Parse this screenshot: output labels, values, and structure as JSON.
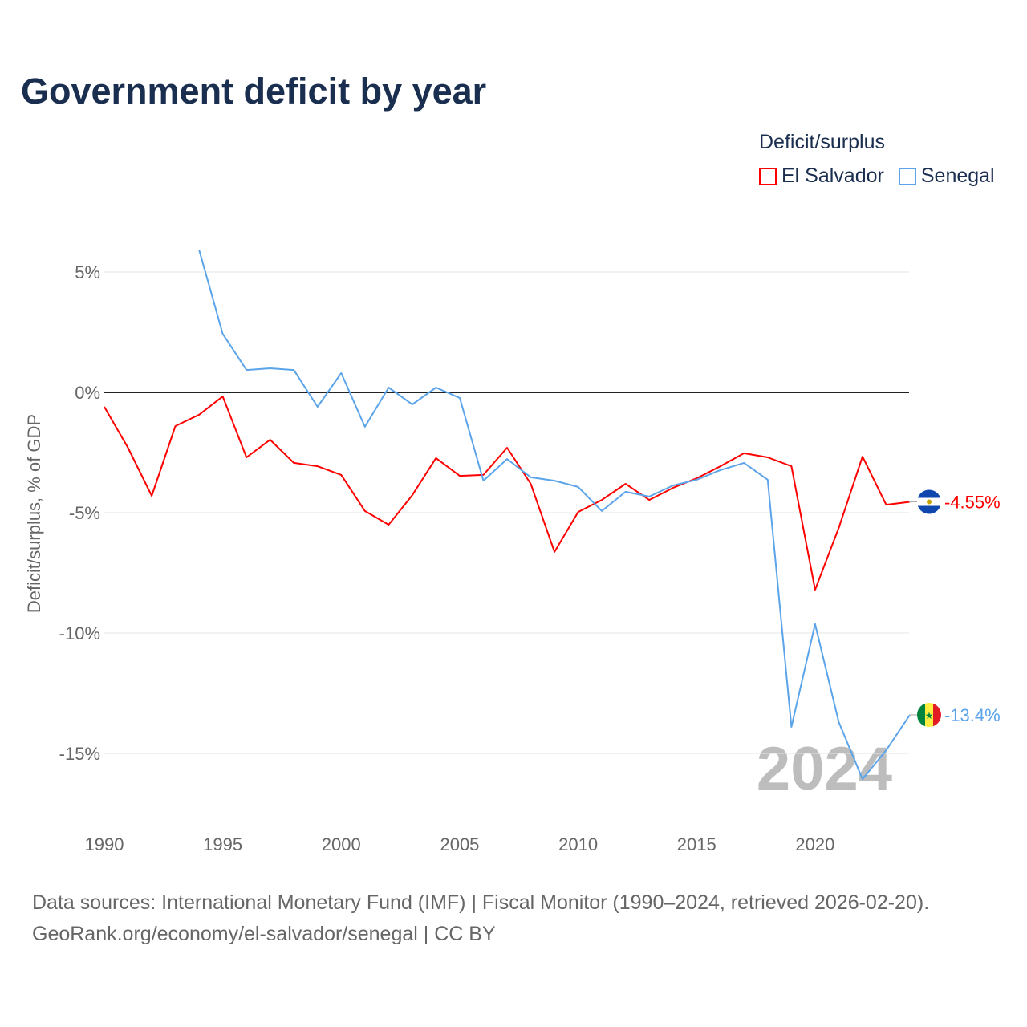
{
  "title": "Government deficit by year",
  "legend": {
    "title": "Deficit/surplus",
    "items": [
      {
        "name": "El Salvador",
        "color": "#ff0000"
      },
      {
        "name": "Senegal",
        "color": "#5ba4ea"
      }
    ]
  },
  "year_watermark": "2024",
  "source": {
    "line1": "Data sources: International Monetary Fund (IMF) | Fiscal Monitor (1990–2024, retrieved 2026-02-20).",
    "line2": "GeoRank.org/economy/el-salvador/senegal | CC BY"
  },
  "chart_data": {
    "type": "line",
    "title": "Government deficit by year",
    "xlabel": "",
    "ylabel": "Deficit/surplus, % of GDP",
    "xlim": [
      1990,
      2024
    ],
    "ylim": [
      -17,
      6.5
    ],
    "xticks": [
      "1990",
      "1995",
      "2000",
      "2005",
      "2010",
      "2015",
      "2020"
    ],
    "yticks": [
      {
        "v": 5,
        "label": "5%"
      },
      {
        "v": 0,
        "label": "0%"
      },
      {
        "v": -5,
        "label": "-5%"
      },
      {
        "v": -10,
        "label": "-10%"
      },
      {
        "v": -15,
        "label": "-15%"
      }
    ],
    "grid": true,
    "legend_position": "top-right",
    "series": [
      {
        "name": "El Salvador",
        "color": "#ff0000",
        "end_label": "-4.55%",
        "start_year": 1990,
        "values": [
          -0.6,
          -2.3,
          -4.3,
          -1.4,
          -0.93,
          -0.17,
          -2.7,
          -1.97,
          -2.93,
          -3.07,
          -3.43,
          -4.93,
          -5.5,
          -4.27,
          -2.73,
          -3.47,
          -3.43,
          -2.3,
          -3.8,
          -6.63,
          -4.97,
          -4.47,
          -3.8,
          -4.47,
          -3.97,
          -3.57,
          -3.07,
          -2.53,
          -2.7,
          -3.07,
          -8.2,
          -5.63,
          -2.67,
          -4.67,
          -4.55
        ]
      },
      {
        "name": "Senegal",
        "color": "#5ba4ea",
        "end_label": "-13.4%",
        "start_year": 1994,
        "values": [
          5.93,
          2.43,
          0.93,
          1.0,
          0.93,
          -0.6,
          0.8,
          -1.43,
          0.2,
          -0.5,
          0.2,
          -0.23,
          -3.67,
          -2.77,
          -3.53,
          -3.67,
          -3.93,
          -4.93,
          -4.13,
          -4.33,
          -3.87,
          -3.63,
          -3.23,
          -2.93,
          -3.63,
          -13.9,
          -9.63,
          -13.7,
          -16.07,
          -14.87,
          -13.4
        ]
      }
    ]
  }
}
